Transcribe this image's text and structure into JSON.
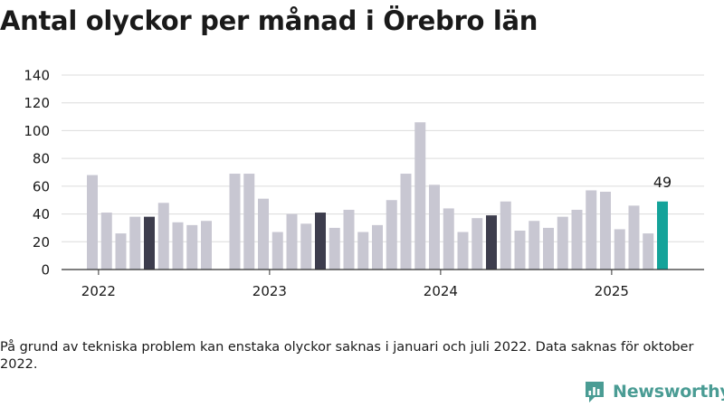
{
  "chart_data": {
    "type": "bar",
    "title": "Antal olyckor per månad i Örebro län",
    "xlabel": "",
    "ylabel": "",
    "ylim": [
      0,
      140
    ],
    "yticks": [
      "0",
      "20",
      "40",
      "60",
      "80",
      "100",
      "120",
      "140"
    ],
    "year_labels": [
      "2022",
      "2023",
      "2024",
      "2025"
    ],
    "grid": true,
    "legend": "none",
    "categories": [
      "2022-01",
      "2022-02",
      "2022-03",
      "2022-04",
      "2022-05",
      "2022-06",
      "2022-07",
      "2022-08",
      "2022-09",
      "2022-10",
      "2022-11",
      "2022-12",
      "2023-01",
      "2023-02",
      "2023-03",
      "2023-04",
      "2023-05",
      "2023-06",
      "2023-07",
      "2023-08",
      "2023-09",
      "2023-10",
      "2023-11",
      "2023-12",
      "2024-01",
      "2024-02",
      "2024-03",
      "2024-04",
      "2024-05",
      "2024-06",
      "2024-07",
      "2024-08",
      "2024-09",
      "2024-10",
      "2024-11",
      "2024-12",
      "2025-01",
      "2025-02",
      "2025-03",
      "2025-04",
      "2025-05"
    ],
    "values": [
      68,
      41,
      26,
      38,
      38,
      48,
      34,
      32,
      35,
      null,
      69,
      69,
      51,
      27,
      40,
      33,
      41,
      30,
      43,
      27,
      32,
      50,
      69,
      106,
      61,
      44,
      27,
      37,
      39,
      49,
      28,
      35,
      30,
      38,
      43,
      57,
      56,
      29,
      46,
      26,
      49
    ],
    "highlight_months": [
      "2022-05",
      "2023-05",
      "2024-05"
    ],
    "current_month": "2025-05",
    "current_label": "49",
    "colors": {
      "default": "#c8c7d2",
      "highlight": "#3d3d4d",
      "current": "#14a39a",
      "grid": "#dcdcdc",
      "axis": "#333333"
    }
  },
  "footnote": "På grund av tekniska problem kan enstaka olyckor saknas i januari och juli 2022. Data saknas för oktober 2022.",
  "brand": {
    "name": "Newsworthy",
    "icon": "newsworthy-logo-icon",
    "color": "#4a9c94"
  }
}
